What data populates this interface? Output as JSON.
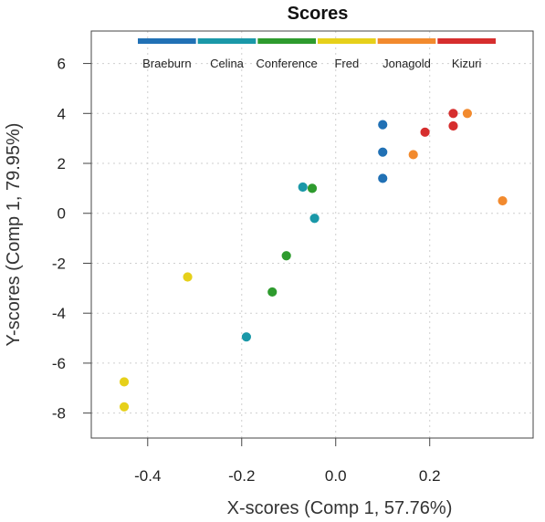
{
  "chart_data": {
    "type": "scatter",
    "title": "Scores",
    "xlabel": "X-scores (Comp 1, 57.76%)",
    "ylabel": "Y-scores (Comp 1, 79.95%)",
    "xlim": [
      -0.52,
      0.42
    ],
    "ylim": [
      -9.0,
      7.3
    ],
    "x_ticks": [
      -0.4,
      -0.2,
      0.0,
      0.2
    ],
    "y_ticks": [
      -8,
      -6,
      -4,
      -2,
      0,
      2,
      4,
      6
    ],
    "x_tick_labels": [
      "-0.4",
      "-0.2",
      "0.0",
      "0.2"
    ],
    "y_tick_labels": [
      "-8",
      "-6",
      "-4",
      "-2",
      "0",
      "2",
      "4",
      "6"
    ],
    "grid": true,
    "legend_position": "top",
    "series": [
      {
        "name": "Braeburn",
        "color": "#2171b5",
        "points": [
          {
            "x": 0.1,
            "y": 3.55
          },
          {
            "x": 0.1,
            "y": 2.45
          },
          {
            "x": 0.1,
            "y": 1.4
          }
        ]
      },
      {
        "name": "Celina",
        "color": "#1a98a8",
        "points": [
          {
            "x": -0.07,
            "y": 1.05
          },
          {
            "x": -0.045,
            "y": -0.2
          },
          {
            "x": -0.19,
            "y": -4.95
          }
        ]
      },
      {
        "name": "Conference",
        "color": "#2e9b2e",
        "points": [
          {
            "x": -0.05,
            "y": 1.0
          },
          {
            "x": -0.105,
            "y": -1.7
          },
          {
            "x": -0.135,
            "y": -3.15
          }
        ]
      },
      {
        "name": "Fred",
        "color": "#e6d01a",
        "points": [
          {
            "x": -0.315,
            "y": -2.55
          },
          {
            "x": -0.45,
            "y": -6.75
          },
          {
            "x": -0.45,
            "y": -7.75
          }
        ]
      },
      {
        "name": "Jonagold",
        "color": "#f28a2e",
        "points": [
          {
            "x": 0.165,
            "y": 2.35
          },
          {
            "x": 0.28,
            "y": 4.0
          },
          {
            "x": 0.355,
            "y": 0.5
          }
        ]
      },
      {
        "name": "Kizuri",
        "color": "#d62e2e",
        "points": [
          {
            "x": 0.19,
            "y": 3.25
          },
          {
            "x": 0.25,
            "y": 4.0
          },
          {
            "x": 0.25,
            "y": 3.5
          }
        ]
      }
    ]
  }
}
